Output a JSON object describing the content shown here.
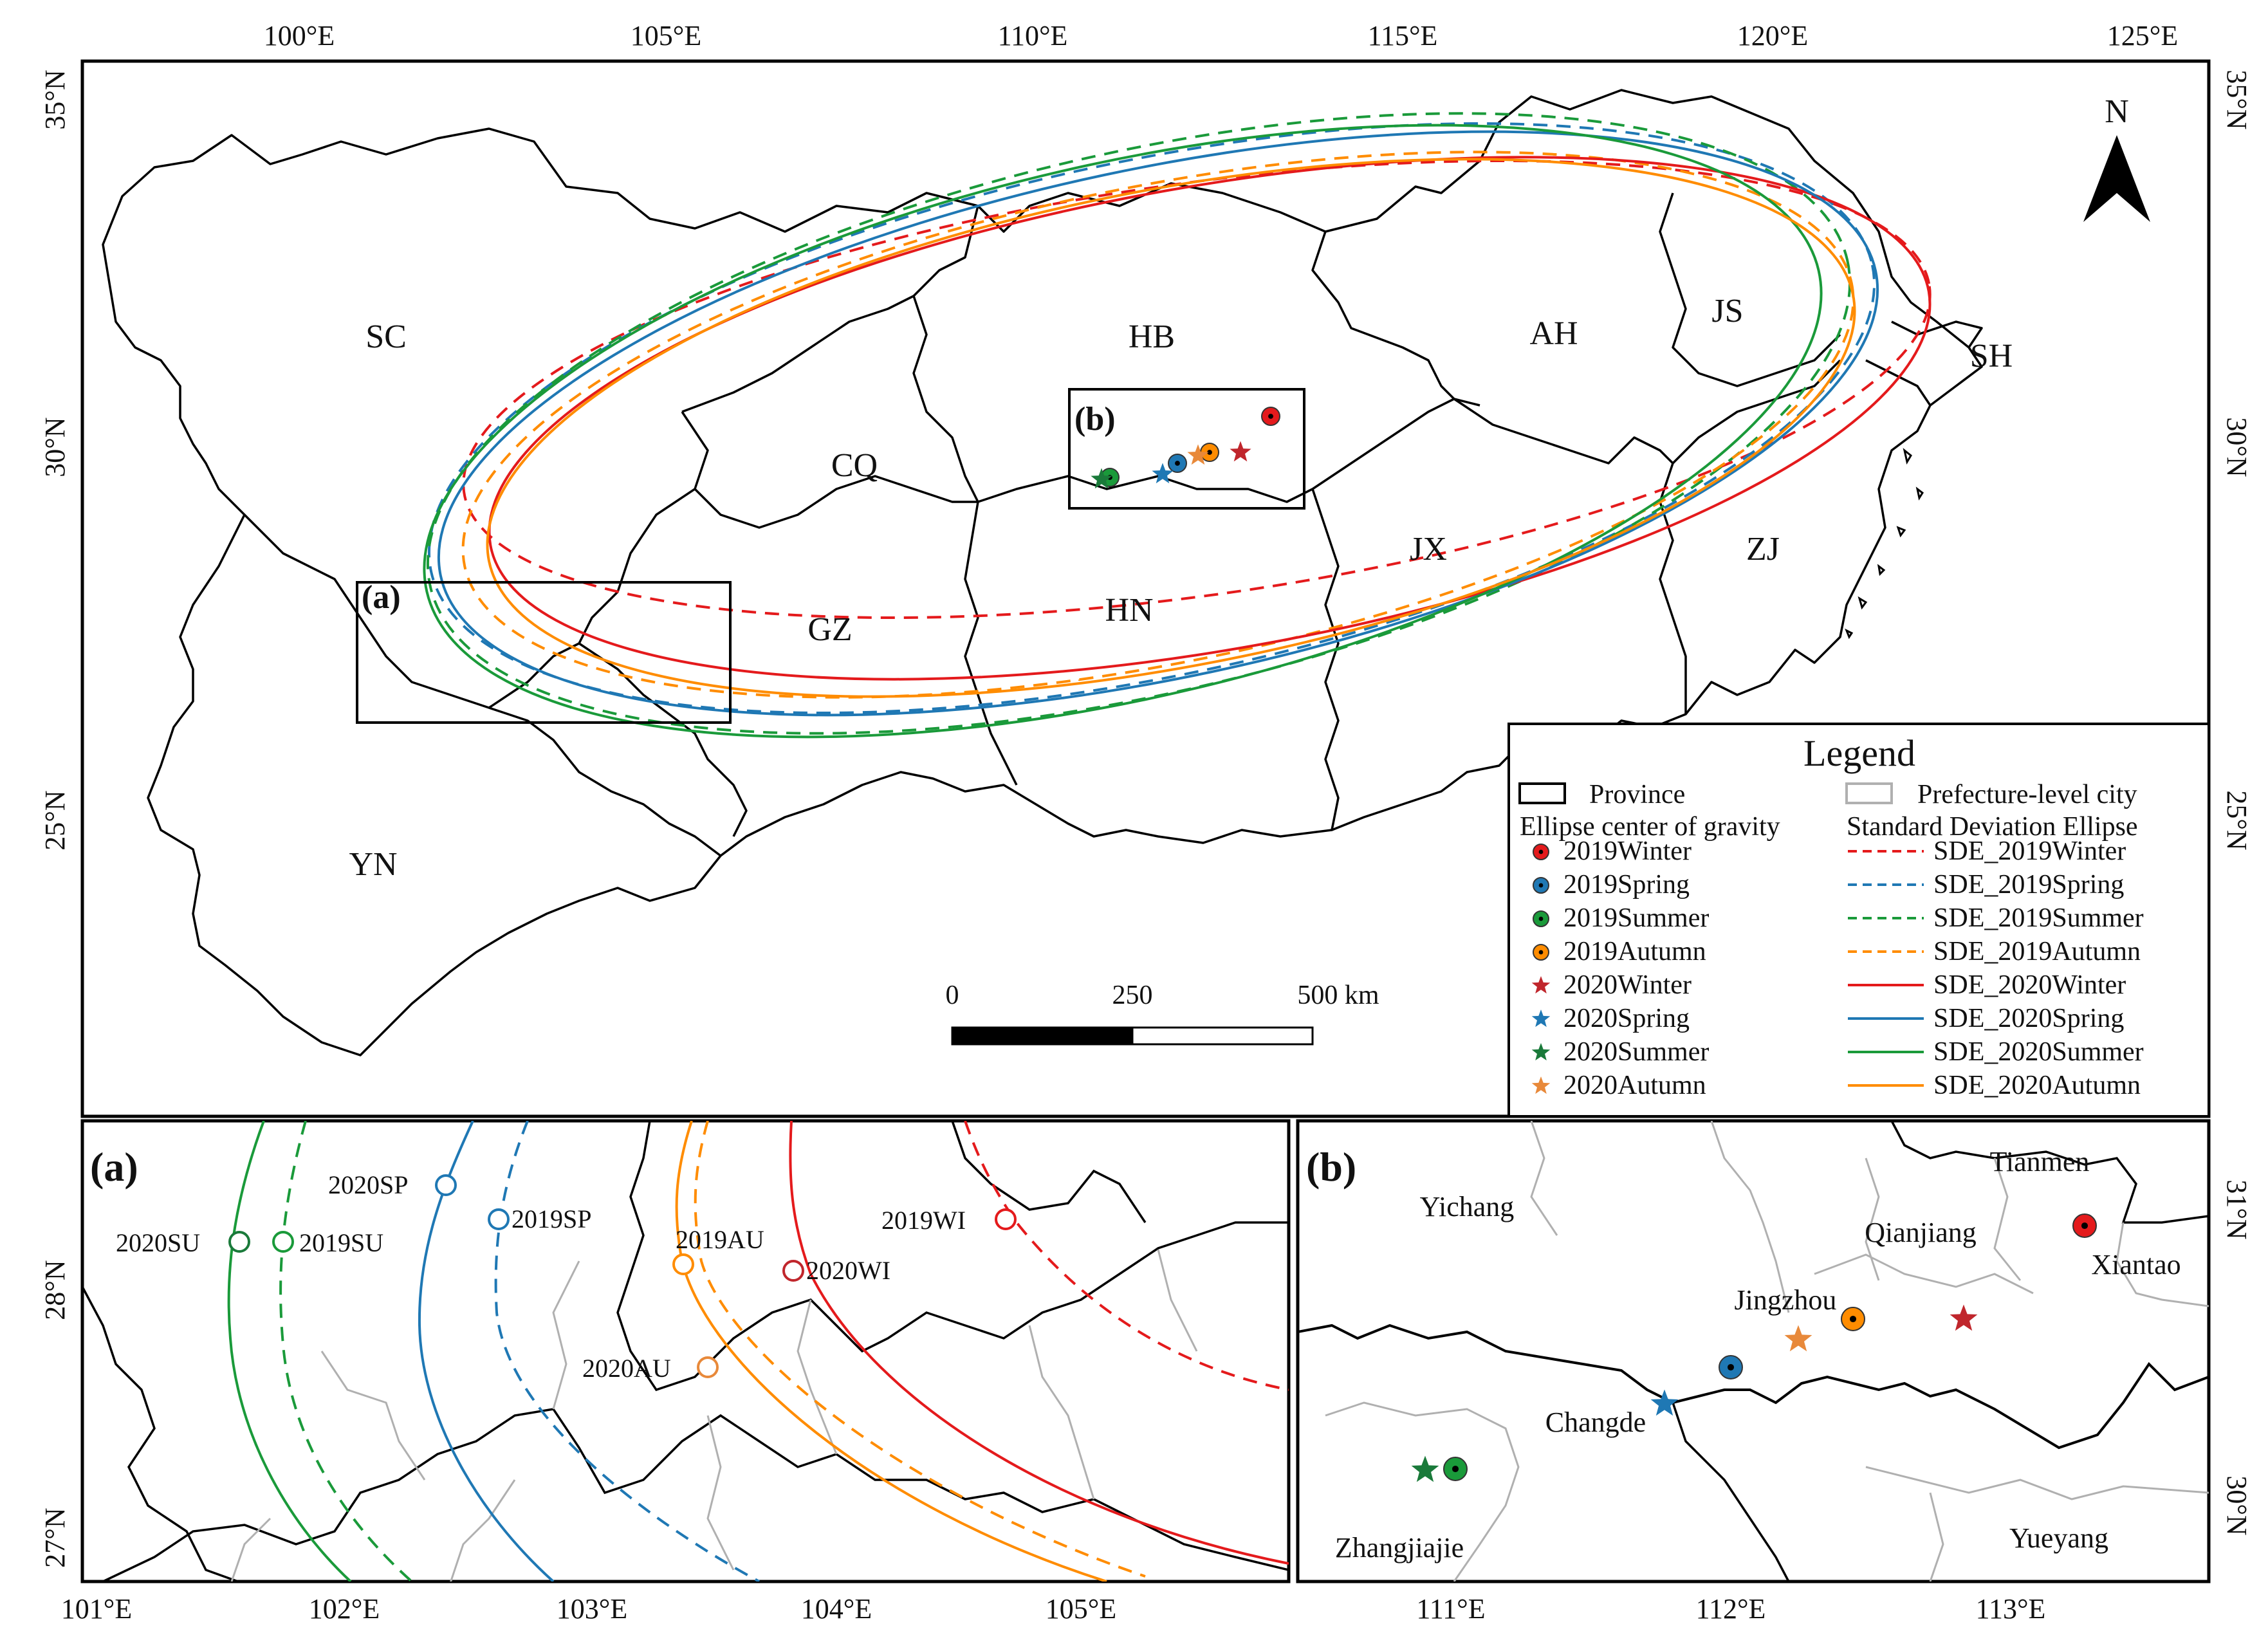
{
  "main_map": {
    "top_lon_ticks": [
      "100°E",
      "105°E",
      "110°E",
      "115°E",
      "120°E",
      "125°E"
    ],
    "lat_ticks": [
      "35°N",
      "30°N",
      "25°N"
    ],
    "provinces": [
      "SC",
      "HB",
      "AH",
      "JS",
      "SH",
      "CQ",
      "GZ",
      "HN",
      "JX",
      "ZJ",
      "YN"
    ],
    "box_labels": [
      "(a)",
      "(b)"
    ],
    "north_label": "N",
    "scale": {
      "labels": [
        "0",
        "250",
        "500 km"
      ]
    }
  },
  "legend": {
    "title": "Legend",
    "province_label": "Province",
    "city_label": "Prefecture-level city",
    "centers_header": "Ellipse center of gravity",
    "sde_header": "Standard Deviation Ellipse",
    "centers": [
      {
        "label": "2019Winter",
        "color": "#e41a1c",
        "marker": "circle"
      },
      {
        "label": "2019Spring",
        "color": "#1f78b4",
        "marker": "circle"
      },
      {
        "label": "2019Summer",
        "color": "#1a9a3a",
        "marker": "circle"
      },
      {
        "label": "2019Autumn",
        "color": "#ff8c00",
        "marker": "circle"
      },
      {
        "label": "2020Winter",
        "color": "#c0262c",
        "marker": "star"
      },
      {
        "label": "2020Spring",
        "color": "#1f78b4",
        "marker": "star"
      },
      {
        "label": "2020Summer",
        "color": "#1a7a3a",
        "marker": "star"
      },
      {
        "label": "2020Autumn",
        "color": "#e8893a",
        "marker": "star"
      }
    ],
    "ellipses": [
      {
        "label": "SDE_2019Winter",
        "color": "#e41a1c",
        "style": "dashed"
      },
      {
        "label": "SDE_2019Spring",
        "color": "#1f78b4",
        "style": "dashed"
      },
      {
        "label": "SDE_2019Summer",
        "color": "#1a9a3a",
        "style": "dashed"
      },
      {
        "label": "SDE_2019Autumn",
        "color": "#ff8c00",
        "style": "dashed"
      },
      {
        "label": "SDE_2020Winter",
        "color": "#e41a1c",
        "style": "solid"
      },
      {
        "label": "SDE_2020Spring",
        "color": "#1f78b4",
        "style": "solid"
      },
      {
        "label": "SDE_2020Summer",
        "color": "#1a9a3a",
        "style": "solid"
      },
      {
        "label": "SDE_2020Autumn",
        "color": "#ff8c00",
        "style": "solid"
      }
    ]
  },
  "inset_a": {
    "title": "(a)",
    "lon_ticks": [
      "101°E",
      "102°E",
      "103°E",
      "104°E",
      "105°E"
    ],
    "lat_ticks": [
      "28°N",
      "27°N"
    ],
    "points": [
      "2020SU",
      "2019SU",
      "2020SP",
      "2019SP",
      "2019AU",
      "2020WI",
      "2019WI",
      "2020AU"
    ]
  },
  "inset_b": {
    "title": "(b)",
    "lon_ticks": [
      "111°E",
      "112°E",
      "113°E"
    ],
    "lat_ticks": [
      "31°N",
      "30°N"
    ],
    "cities": [
      "Yichang",
      "Tianmen",
      "Qianjiang",
      "Xiantao",
      "Jingzhou",
      "Changde",
      "Zhangjiajie",
      "Yueyang"
    ]
  }
}
